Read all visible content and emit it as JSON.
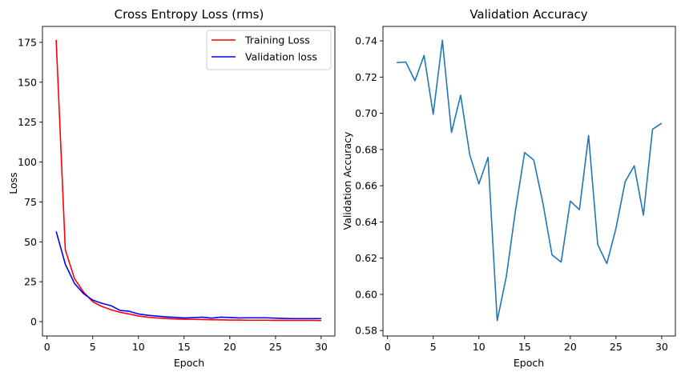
{
  "chart_data": [
    {
      "type": "line",
      "title": "Cross Entropy Loss (rms)",
      "xlabel": "Epoch",
      "ylabel": "Loss",
      "xlim": [
        -0.5,
        31.5
      ],
      "ylim": [
        -9,
        185
      ],
      "xticks": [
        0,
        5,
        10,
        15,
        20,
        25,
        30
      ],
      "yticks": [
        0,
        25,
        50,
        75,
        100,
        125,
        150,
        175
      ],
      "legend": "top-right",
      "grid": false,
      "x": [
        1,
        2,
        3,
        4,
        5,
        6,
        7,
        8,
        9,
        10,
        11,
        12,
        13,
        14,
        15,
        16,
        17,
        18,
        19,
        20,
        21,
        22,
        23,
        24,
        25,
        26,
        27,
        28,
        29,
        30
      ],
      "series": [
        {
          "name": "Training Loss",
          "color": "#ff0000",
          "values": [
            176.5,
            45,
            27,
            18.5,
            12.5,
            9.5,
            7.5,
            5.8,
            4.8,
            3.5,
            2.8,
            2.3,
            2.0,
            1.7,
            1.5,
            1.4,
            1.3,
            1.2,
            1.1,
            1.0,
            1.0,
            0.9,
            0.9,
            0.9,
            0.8,
            0.8,
            0.8,
            0.8,
            0.8,
            0.7
          ]
        },
        {
          "name": "Validation loss",
          "color": "#0000ff",
          "values": [
            56.5,
            36,
            24,
            17.5,
            13.5,
            11.5,
            10,
            7,
            6.5,
            4.8,
            4,
            3.5,
            3,
            2.7,
            2.3,
            2.5,
            2.8,
            2.2,
            2.8,
            2.6,
            2.3,
            2.4,
            2.4,
            2.4,
            2.2,
            2.0,
            1.9,
            1.9,
            1.9,
            1.9
          ]
        }
      ]
    },
    {
      "type": "line",
      "title": "Validation Accuracy",
      "xlabel": "Epoch",
      "ylabel": "Validation Accuracy",
      "xlim": [
        -0.5,
        31.5
      ],
      "ylim": [
        0.577,
        0.748
      ],
      "xticks": [
        0,
        5,
        10,
        15,
        20,
        25,
        30
      ],
      "yticks": [
        "0.58",
        "0.60",
        "0.62",
        "0.64",
        "0.66",
        "0.68",
        "0.70",
        "0.72",
        "0.74"
      ],
      "grid": false,
      "x": [
        1,
        2,
        3,
        4,
        5,
        6,
        7,
        8,
        9,
        10,
        11,
        12,
        13,
        14,
        15,
        16,
        17,
        18,
        19,
        20,
        21,
        22,
        23,
        24,
        25,
        26,
        27,
        28,
        29,
        30
      ],
      "series": [
        {
          "color": "#1f77b4",
          "values": [
            0.728,
            0.7283,
            0.718,
            0.732,
            0.6995,
            0.7403,
            0.6895,
            0.71,
            0.677,
            0.661,
            0.6757,
            0.5855,
            0.6098,
            0.6463,
            0.6783,
            0.6742,
            0.6505,
            0.6218,
            0.6178,
            0.6515,
            0.6468,
            0.6877,
            0.6275,
            0.617,
            0.6365,
            0.6622,
            0.671,
            0.6438,
            0.6912,
            0.6945
          ]
        }
      ]
    }
  ]
}
